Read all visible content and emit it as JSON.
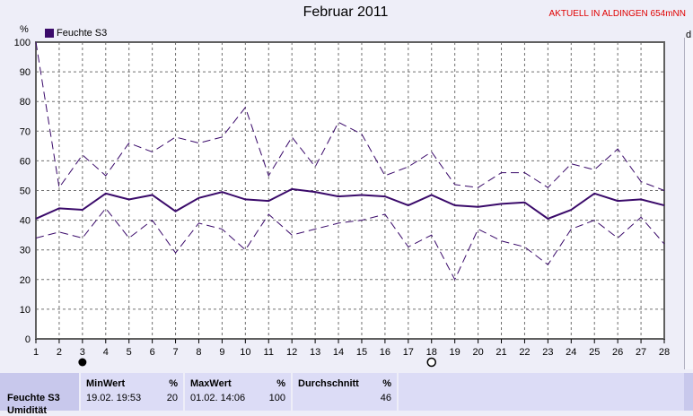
{
  "header": {
    "title": "Februar 2011",
    "status": "AKTUELL IN ALDINGEN 654mNN"
  },
  "y_unit": "%",
  "y_unit_right": "d",
  "legend": {
    "label": "Feuchte S3",
    "color": "#3a0a6a"
  },
  "chart_data": {
    "type": "line",
    "title": "Februar 2011",
    "xlabel": "",
    "ylabel": "%",
    "x": [
      1,
      2,
      3,
      4,
      5,
      6,
      7,
      8,
      9,
      10,
      11,
      12,
      13,
      14,
      15,
      16,
      17,
      18,
      19,
      20,
      21,
      22,
      23,
      24,
      25,
      26,
      27,
      28
    ],
    "xlim": [
      1,
      28
    ],
    "ylim": [
      0,
      100
    ],
    "yticks": [
      0,
      10,
      20,
      30,
      40,
      50,
      60,
      70,
      80,
      90,
      100
    ],
    "grid": true,
    "legend_position": "top-left",
    "series": [
      {
        "name": "Feuchte S3",
        "style": "solid",
        "values": [
          40.5,
          44,
          43.5,
          49,
          47,
          48.5,
          43,
          47.5,
          49.5,
          47,
          46.5,
          50.5,
          49.5,
          48,
          48.5,
          48,
          45,
          48.5,
          45,
          44.5,
          45.5,
          46,
          40.5,
          43.5,
          49,
          46.5,
          47,
          45
        ]
      },
      {
        "style": "dashed",
        "values": [
          100,
          51,
          62,
          55,
          66,
          63,
          68,
          66,
          68,
          78,
          55,
          68,
          58,
          73,
          69,
          55,
          58,
          63,
          52,
          51,
          56,
          56,
          51,
          59,
          57,
          64,
          53,
          50
        ]
      },
      {
        "style": "dashed",
        "values": [
          34,
          36,
          34,
          44,
          34,
          40,
          29,
          39,
          37,
          30,
          42,
          35,
          37,
          39,
          40,
          42,
          31,
          35,
          20,
          37,
          33,
          31,
          25,
          37,
          40,
          34,
          41,
          32
        ]
      }
    ],
    "markers": [
      {
        "x": 3,
        "type": "filled-circle"
      },
      {
        "x": 18,
        "type": "open-circle"
      }
    ]
  },
  "stats": {
    "sensor_label": "Feuchte S3",
    "sensor_sub": "Umidität",
    "min": {
      "label": "MinWert",
      "unit": "%",
      "date": "19.02.  19:53",
      "value": "20"
    },
    "max": {
      "label": "MaxWert",
      "unit": "%",
      "date": "01.02.  14:06",
      "value": "100"
    },
    "avg": {
      "label": "Durchschnitt",
      "unit": "%",
      "value": "46"
    }
  }
}
